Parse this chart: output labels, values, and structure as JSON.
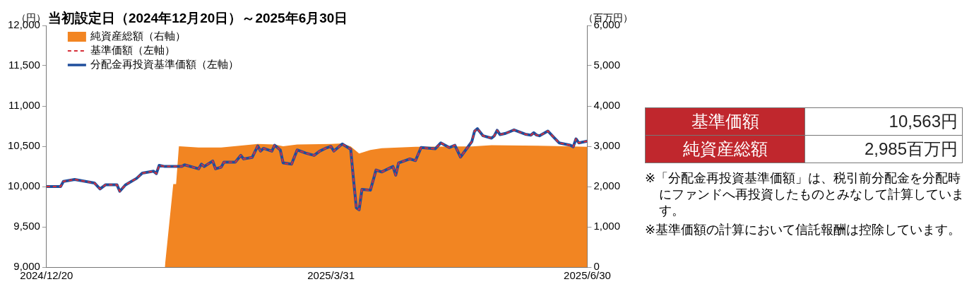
{
  "chart_data": [
    {
      "type": "line",
      "title": "当初設定日（2024年12月20日）～2025年6月30日",
      "ylabel": "（円）",
      "y2label": "（百万円）",
      "xlim": [
        "2024-12-20",
        "2025-06-30"
      ],
      "xticks": [
        {
          "value": "2024-12-20",
          "label": "2024/12/20"
        },
        {
          "value": "2025-03-31",
          "label": "2025/3/31"
        },
        {
          "value": "2025-06-30",
          "label": "2025/6/30"
        }
      ],
      "ylim": [
        9000,
        12000
      ],
      "yticks": [
        {
          "value": 9000,
          "label": "9,000"
        },
        {
          "value": 9500,
          "label": "9,500"
        },
        {
          "value": 10000,
          "label": "10,000"
        },
        {
          "value": 10500,
          "label": "10,500"
        },
        {
          "value": 11000,
          "label": "11,000"
        },
        {
          "value": 11500,
          "label": "11,500"
        },
        {
          "value": 12000,
          "label": "12,000"
        }
      ],
      "y2lim": [
        0,
        6000
      ],
      "y2ticks": [
        0,
        {
          "value": 1000,
          "label": "1,000"
        },
        {
          "value": 2000,
          "label": "2,000"
        },
        {
          "value": 3000,
          "label": "3,000"
        },
        {
          "value": 4000,
          "label": "4,000"
        },
        {
          "value": 5000,
          "label": "5,000"
        },
        {
          "value": 6000,
          "label": "6,000"
        }
      ],
      "grid": false,
      "legend": "top left",
      "marker": "none",
      "series": [
        {
          "name": "純資産総額（右軸）",
          "type": "area",
          "axis": "y2",
          "color": "#f28522",
          "x": [
            "2025-01-31",
            "2025-02-03",
            "2025-02-04",
            "2025-02-05",
            "2025-02-12",
            "2025-02-20",
            "2025-03-05",
            "2025-03-11",
            "2025-03-14",
            "2025-03-19",
            "2025-03-31",
            "2025-04-04",
            "2025-04-07",
            "2025-04-10",
            "2025-04-14",
            "2025-04-18",
            "2025-04-30",
            "2025-05-16",
            "2025-05-20",
            "2025-05-27",
            "2025-06-16",
            "2025-06-30"
          ],
          "values": [
            0,
            2060,
            2060,
            3000,
            2968,
            2968,
            3056,
            3045,
            3000,
            3045,
            3056,
            3068,
            2997,
            2821,
            2909,
            2950,
            2986,
            2997,
            2997,
            3027,
            3010,
            2985
          ]
        },
        {
          "name": "基準価額（左軸）",
          "type": "line",
          "line_style": "dashed",
          "color": "#d6303a",
          "values": [
            10000,
            10000,
            10064,
            10088,
            10044,
            9970,
            10023,
            10023,
            9941,
            10020,
            10102,
            10167,
            10190,
            10161,
            10264,
            10249,
            10249,
            10270,
            10220,
            10278,
            10249,
            10317,
            10220,
            10240,
            10302,
            10302,
            10387,
            10343,
            10361,
            10504,
            10440,
            10474,
            10440,
            10513,
            10454,
            10293,
            10278,
            10454,
            10416,
            10387,
            10440,
            10474,
            10498,
            10440,
            10528,
            10463,
            10088,
            9736,
            9712,
            9964,
            9955,
            10205,
            10181,
            10249,
            10141,
            10293,
            10343,
            10322,
            10484,
            10469,
            10542,
            10484,
            10513,
            10366,
            10557,
            10689,
            10718,
            10630,
            10601,
            10630,
            10698,
            10645,
            10660,
            10703,
            10650,
            10639,
            10668,
            10639,
            10630,
            10689,
            10616,
            10542,
            10513,
            10493,
            10592,
            10542,
            10563
          ]
        },
        {
          "name": "分配金再投資基準価額（左軸）",
          "type": "line",
          "line_style": "solid",
          "color": "#1f4e9c",
          "values": [
            10000,
            10000,
            10064,
            10088,
            10044,
            9970,
            10023,
            10023,
            9941,
            10020,
            10102,
            10167,
            10190,
            10161,
            10264,
            10249,
            10249,
            10270,
            10220,
            10278,
            10249,
            10317,
            10220,
            10240,
            10302,
            10302,
            10387,
            10343,
            10361,
            10504,
            10440,
            10474,
            10440,
            10513,
            10454,
            10293,
            10278,
            10454,
            10416,
            10387,
            10440,
            10474,
            10498,
            10440,
            10528,
            10463,
            10088,
            9736,
            9712,
            9964,
            9955,
            10205,
            10181,
            10249,
            10141,
            10293,
            10343,
            10322,
            10484,
            10469,
            10542,
            10484,
            10513,
            10366,
            10557,
            10689,
            10718,
            10630,
            10601,
            10630,
            10698,
            10645,
            10660,
            10703,
            10650,
            10639,
            10668,
            10639,
            10630,
            10689,
            10616,
            10542,
            10513,
            10493,
            10592,
            10542,
            10563
          ]
        }
      ],
      "x": [
        "2024-12-20",
        "2024-12-25",
        "2024-12-26",
        "2024-12-30",
        "2025-01-06",
        "2025-01-08",
        "2025-01-10",
        "2025-01-14",
        "2025-01-15",
        "2025-01-17",
        "2025-01-21",
        "2025-01-23",
        "2025-01-27",
        "2025-01-28",
        "2025-01-29",
        "2025-01-31",
        "2025-02-06",
        "2025-02-07",
        "2025-02-12",
        "2025-02-13",
        "2025-02-14",
        "2025-02-17",
        "2025-02-18",
        "2025-02-20",
        "2025-02-21",
        "2025-02-25",
        "2025-02-27",
        "2025-02-28",
        "2025-03-03",
        "2025-03-05",
        "2025-03-06",
        "2025-03-07",
        "2025-03-10",
        "2025-03-11",
        "2025-03-13",
        "2025-03-14",
        "2025-03-17",
        "2025-03-19",
        "2025-03-22",
        "2025-03-25",
        "2025-03-27",
        "2025-03-29",
        "2025-03-31",
        "2025-04-01",
        "2025-04-04",
        "2025-04-07",
        "2025-04-08",
        "2025-04-09",
        "2025-04-10",
        "2025-04-11",
        "2025-04-14",
        "2025-04-16",
        "2025-04-18",
        "2025-04-22",
        "2025-04-23",
        "2025-04-24",
        "2025-04-28",
        "2025-04-30",
        "2025-05-02",
        "2025-05-07",
        "2025-05-09",
        "2025-05-12",
        "2025-05-14",
        "2025-05-16",
        "2025-05-20",
        "2025-05-21",
        "2025-05-22",
        "2025-05-24",
        "2025-05-27",
        "2025-05-28",
        "2025-05-29",
        "2025-05-30",
        "2025-06-01",
        "2025-06-04",
        "2025-06-08",
        "2025-06-10",
        "2025-06-11",
        "2025-06-12",
        "2025-06-13",
        "2025-06-16",
        "2025-06-18",
        "2025-06-20",
        "2025-06-24",
        "2025-06-25",
        "2025-06-26",
        "2025-06-27",
        "2025-06-30"
      ]
    },
    {
      "type": "other",
      "categories": [
        "基準価額",
        "純資産総額"
      ],
      "value_labels": [
        "10,563円",
        "2,985百万円"
      ],
      "color": "#c0272d",
      "annotations": [
        "※「分配金再投資基準価額」は、税引前分配金を分配時にファンドへ再投資したものとみなして計算しています。",
        "※基準価額の計算において信託報酬は控除しています。"
      ]
    }
  ]
}
